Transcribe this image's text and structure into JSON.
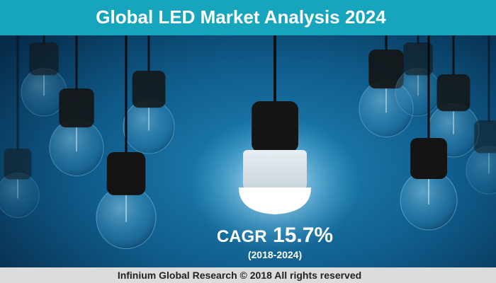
{
  "header": {
    "title": "Global LED Market Analysis 2024"
  },
  "cagr": {
    "label": "CAGR",
    "value": "15.7%",
    "period": "(2018-2024)"
  },
  "footer": {
    "text": "Infinium Global Research © 2018 All rights reserved"
  }
}
